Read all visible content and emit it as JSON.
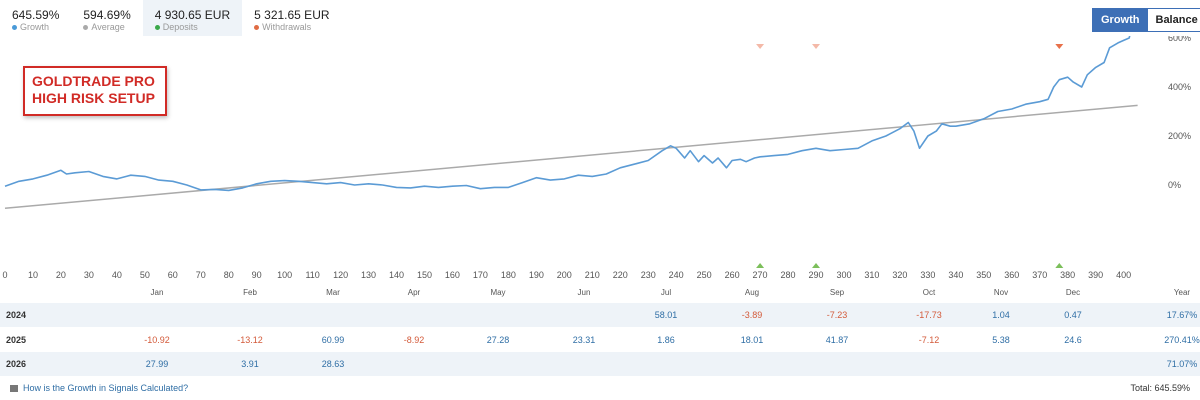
{
  "stats": [
    {
      "value": "645.59%",
      "label": "Growth",
      "color": "#4a9ad8"
    },
    {
      "value": "594.69%",
      "label": "Average",
      "color": "#aaaaaa"
    },
    {
      "value": "4 930.65 EUR",
      "label": "Deposits",
      "color": "#3aa84a"
    },
    {
      "value": "5 321.65 EUR",
      "label": "Withdrawals",
      "color": "#e06c44"
    }
  ],
  "toggle": {
    "growth": "Growth",
    "balance": "Balance"
  },
  "badge": {
    "line1": "GOLDTRADE PRO",
    "line2": "HIGH RISK SETUP"
  },
  "months": [
    "Jan",
    "Feb",
    "Mar",
    "Apr",
    "May",
    "Jun",
    "Jul",
    "Aug",
    "Sep",
    "Oct",
    "Nov",
    "Dec",
    "Year"
  ],
  "table": [
    {
      "year": "2024",
      "cells": [
        "",
        "",
        "",
        "",
        "",
        "",
        "58.01",
        "-3.89",
        "-7.23",
        "-17.73",
        "1.04",
        "0.47",
        "17.67%"
      ]
    },
    {
      "year": "2025",
      "cells": [
        "-10.92",
        "-13.12",
        "60.99",
        "-8.92",
        "27.28",
        "23.31",
        "1.86",
        "18.01",
        "41.87",
        "-7.12",
        "5.38",
        "24.6",
        "270.41%"
      ]
    },
    {
      "year": "2026",
      "cells": [
        "27.99",
        "3.91",
        "28.63",
        "",
        "",
        "",
        "",
        "",
        "",
        "",
        "",
        "",
        "71.07%"
      ]
    }
  ],
  "footer": {
    "link": "How is the Growth in Signals Calculated?",
    "total": "Total: 645.59%"
  },
  "chart_data": {
    "type": "line",
    "x_ticks": [
      0,
      10,
      20,
      30,
      40,
      50,
      60,
      70,
      80,
      90,
      100,
      110,
      120,
      130,
      140,
      150,
      160,
      170,
      180,
      190,
      200,
      210,
      220,
      230,
      240,
      250,
      260,
      270,
      280,
      290,
      300,
      310,
      320,
      330,
      340,
      350,
      360,
      370,
      380,
      390,
      400
    ],
    "y_ticks": [
      "0%",
      "200%",
      "400%",
      "600%"
    ],
    "xlim": [
      0,
      408
    ],
    "ylim": [
      -100,
      680
    ],
    "series": [
      {
        "color": "#5b9bd5",
        "x": [
          0,
          5,
          10,
          15,
          20,
          22,
          25,
          30,
          35,
          40,
          45,
          50,
          55,
          60,
          65,
          70,
          75,
          80,
          85,
          90,
          95,
          100,
          105,
          110,
          115,
          120,
          125,
          130,
          135,
          140,
          145,
          150,
          155,
          160,
          165,
          170,
          175,
          180,
          185,
          190,
          195,
          200,
          205,
          210,
          215,
          220,
          225,
          230,
          235,
          238,
          240,
          243,
          245,
          248,
          250,
          253,
          255,
          258,
          260,
          263,
          265,
          268,
          270,
          275,
          280,
          285,
          290,
          295,
          300,
          305,
          310,
          315,
          320,
          323,
          325,
          327,
          330,
          333,
          335,
          338,
          340,
          345,
          350,
          355,
          360,
          365,
          370,
          373,
          375,
          377,
          380,
          382,
          385,
          387,
          390,
          393,
          395,
          398,
          400,
          402,
          403,
          405
        ],
        "y": [
          -5,
          15,
          25,
          40,
          60,
          45,
          50,
          55,
          35,
          25,
          40,
          35,
          20,
          15,
          0,
          -20,
          -18,
          -22,
          -12,
          5,
          15,
          18,
          15,
          10,
          5,
          10,
          0,
          5,
          0,
          -10,
          -12,
          -5,
          -10,
          -5,
          -2,
          -15,
          -10,
          -10,
          10,
          30,
          20,
          25,
          40,
          35,
          45,
          70,
          85,
          100,
          140,
          160,
          150,
          110,
          140,
          95,
          120,
          90,
          110,
          70,
          100,
          105,
          95,
          110,
          115,
          120,
          125,
          140,
          150,
          140,
          145,
          150,
          180,
          200,
          230,
          255,
          220,
          150,
          200,
          220,
          250,
          240,
          240,
          250,
          270,
          300,
          310,
          330,
          340,
          350,
          400,
          430,
          440,
          420,
          400,
          450,
          480,
          500,
          560,
          580,
          590,
          600,
          650,
          640
        ]
      },
      {
        "color": "#aaaaaa",
        "x": [
          0,
          405
        ],
        "y": [
          -95,
          325
        ]
      }
    ],
    "deposit_markers": [
      270,
      290,
      377
    ],
    "withdrawal_markers": [
      270,
      290,
      377
    ]
  }
}
